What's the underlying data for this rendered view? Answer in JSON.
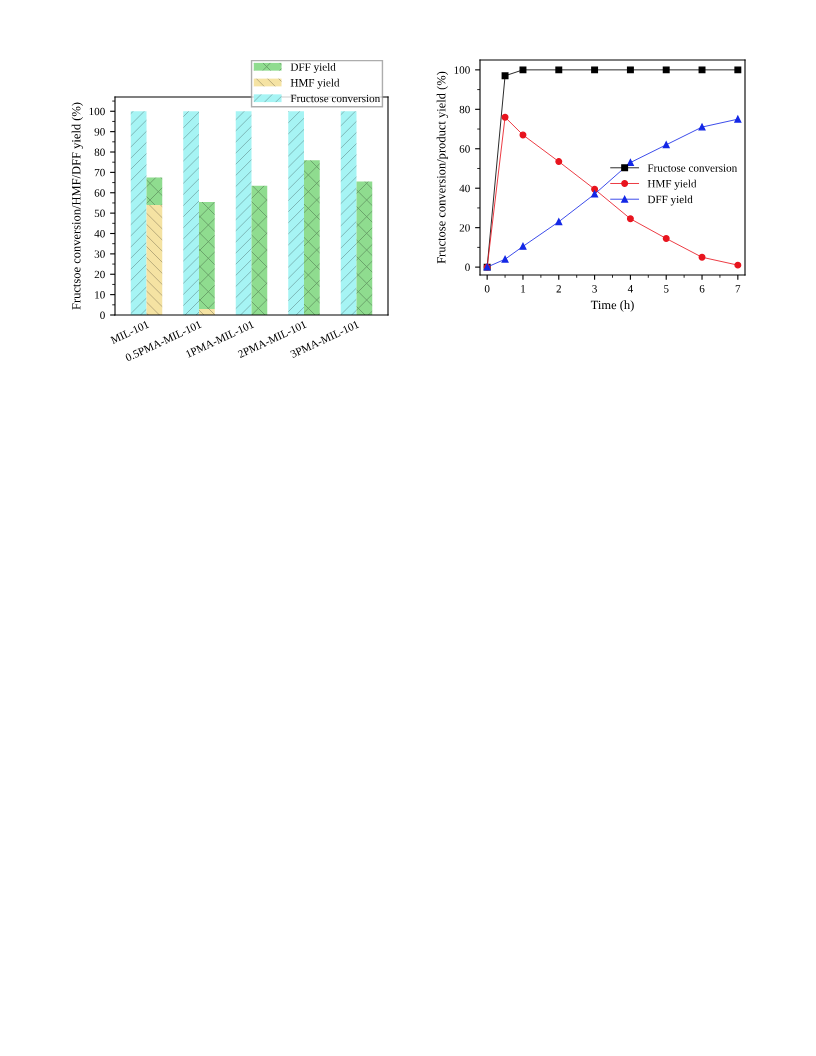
{
  "chart_data": [
    {
      "type": "bar",
      "ylabel": "Fructsoe conversion/HMF/DFF yield (%)",
      "categories": [
        "MIL-101",
        "0.5PMA-MIL-101",
        "1PMA-MIL-101",
        "2PMA-MIL-101",
        "3PMA-MIL-101"
      ],
      "series": [
        {
          "name": "Fructose conversion",
          "color": "#a6f4f4",
          "values": [
            100,
            100,
            100,
            100,
            100
          ]
        },
        {
          "name": "HMF yield",
          "color": "#f5e3a3",
          "values": [
            54,
            3,
            0,
            0,
            0
          ]
        },
        {
          "name": "DFF yield",
          "color": "#8fdc8f",
          "values": [
            13.5,
            52.5,
            63.5,
            76,
            65.5
          ],
          "base": [
            54,
            3,
            0,
            0,
            0
          ]
        }
      ],
      "ylim": [
        0,
        107
      ],
      "yticks": [
        0,
        10,
        20,
        30,
        40,
        50,
        60,
        70,
        80,
        90,
        100
      ],
      "legend": "top right",
      "grid": false
    },
    {
      "type": "line",
      "xlabel": "Time (h)",
      "ylabel": "Fructose conversion/product yield (%)",
      "x": [
        0,
        0.5,
        1,
        2,
        3,
        4,
        5,
        6,
        7
      ],
      "series": [
        {
          "name": "Fructose conversion",
          "color": "#000000",
          "marker": "square",
          "values": [
            0,
            97,
            100,
            100,
            100,
            100,
            100,
            100,
            100
          ]
        },
        {
          "name": "HMF yield",
          "color": "#e8141e",
          "marker": "circle",
          "values": [
            0,
            76,
            67,
            53.5,
            39.5,
            24.5,
            14.5,
            5,
            1
          ]
        },
        {
          "name": "DFF yield",
          "color": "#1428e6",
          "marker": "triangle",
          "values": [
            0,
            4,
            10.5,
            23,
            37,
            53,
            62,
            71,
            75
          ]
        }
      ],
      "xlim": [
        -0.2,
        7.2
      ],
      "xticks": [
        0,
        1,
        2,
        3,
        4,
        5,
        6,
        7
      ],
      "ylim": [
        -4,
        105
      ],
      "yticks": [
        0,
        20,
        40,
        60,
        80,
        100
      ],
      "legend": "right",
      "grid": false
    }
  ]
}
